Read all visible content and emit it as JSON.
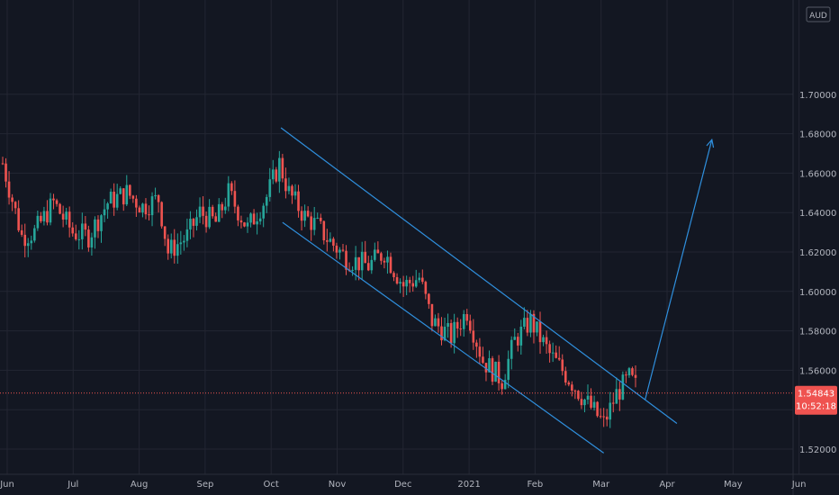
{
  "currency": "AUD",
  "colors": {
    "background": "#131722",
    "grid": "#232632",
    "text": "#b2b5be",
    "up": "#26a69a",
    "down": "#ef5350",
    "drawing": "#2f8fdd",
    "price_line": "#ef5350"
  },
  "chart_data": {
    "type": "candlestick",
    "ylim": [
      1.51,
      1.7
    ],
    "y_ticks": [
      "1.52000",
      "1.54000",
      "1.56000",
      "1.58000",
      "1.60000",
      "1.62000",
      "1.64000",
      "1.66000",
      "1.68000",
      "1.70000"
    ],
    "x_ticks": [
      "Jun",
      "Jul",
      "Aug",
      "Sep",
      "Oct",
      "Nov",
      "Dec",
      "2021",
      "Feb",
      "Mar",
      "Apr",
      "May",
      "Jun"
    ],
    "current_price": "1.54843",
    "countdown": "10:52:18",
    "grid": true,
    "series_path": [
      [
        0,
        1.665
      ],
      [
        6,
        1.628
      ],
      [
        10,
        1.63
      ],
      [
        16,
        1.645
      ],
      [
        22,
        1.63
      ],
      [
        27,
        1.628
      ],
      [
        33,
        1.645
      ],
      [
        39,
        1.65
      ],
      [
        44,
        1.643
      ],
      [
        49,
        1.647
      ],
      [
        52,
        1.62
      ],
      [
        58,
        1.628
      ],
      [
        62,
        1.64
      ],
      [
        67,
        1.635
      ],
      [
        71,
        1.65
      ],
      [
        77,
        1.632
      ],
      [
        83,
        1.648
      ],
      [
        87,
        1.665
      ],
      [
        90,
        1.65
      ],
      [
        95,
        1.638
      ],
      [
        99,
        1.633
      ],
      [
        102,
        1.627
      ],
      [
        108,
        1.617
      ],
      [
        115,
        1.613
      ],
      [
        120,
        1.62
      ],
      [
        126,
        1.603
      ],
      [
        131,
        1.607
      ],
      [
        135,
        1.585
      ],
      [
        141,
        1.577
      ],
      [
        146,
        1.59
      ],
      [
        151,
        1.565
      ],
      [
        157,
        1.555
      ],
      [
        161,
        1.575
      ],
      [
        166,
        1.585
      ],
      [
        172,
        1.568
      ],
      [
        177,
        1.558
      ],
      [
        183,
        1.545
      ],
      [
        189,
        1.533
      ],
      [
        193,
        1.548
      ],
      [
        197,
        1.556
      ],
      [
        199,
        1.552
      ]
    ],
    "trendlines": {
      "upper_channel": [
        [
          87.5,
          1.683
        ],
        [
          212,
          1.533
        ]
      ],
      "lower_channel": [
        [
          88,
          1.635
        ],
        [
          189,
          1.518
        ]
      ],
      "projection": [
        [
          202,
          1.545
        ],
        [
          223,
          1.677
        ]
      ]
    }
  }
}
